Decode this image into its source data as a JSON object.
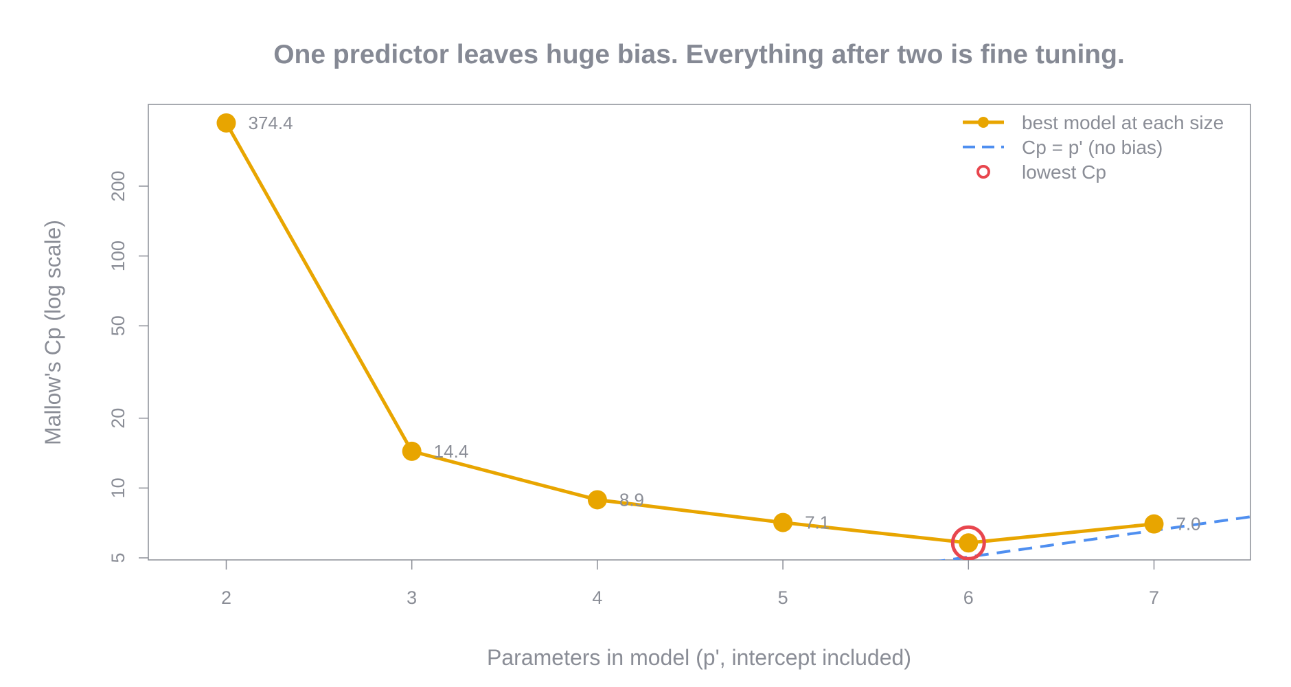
{
  "chart_data": {
    "type": "line",
    "title": "One predictor leaves huge bias. Everything after two is fine tuning.",
    "xlabel": "Parameters in model (p', intercept included)",
    "ylabel": "Mallow's Cp (log scale)",
    "y_scale": "log",
    "xlim": [
      1.58,
      7.52
    ],
    "ylim": [
      4.9,
      450
    ],
    "x_ticks": [
      "2",
      "3",
      "4",
      "5",
      "6",
      "7"
    ],
    "y_ticks": [
      "5",
      "10",
      "20",
      "50",
      "100",
      "200"
    ],
    "grid": false,
    "legend_position": "top-right",
    "series": [
      {
        "name": "best model at each size",
        "x": [
          2,
          3,
          4,
          5,
          6,
          7
        ],
        "y": [
          374.4,
          14.4,
          8.9,
          7.1,
          5.8,
          7.0
        ],
        "labels": [
          "374.4",
          "14.4",
          "8.9",
          "7.1",
          "",
          "7.0"
        ],
        "color": "#E8A500",
        "style": "solid-with-markers"
      },
      {
        "name": "Cp = p' (no bias)",
        "x": [
          1.58,
          7.52
        ],
        "y": [
          1.58,
          7.52
        ],
        "color": "#4F8FF0",
        "style": "dashed"
      },
      {
        "name": "lowest Cp",
        "x": [
          6
        ],
        "y": [
          5.8
        ],
        "color": "#E8464E",
        "style": "open-circle"
      }
    ]
  }
}
